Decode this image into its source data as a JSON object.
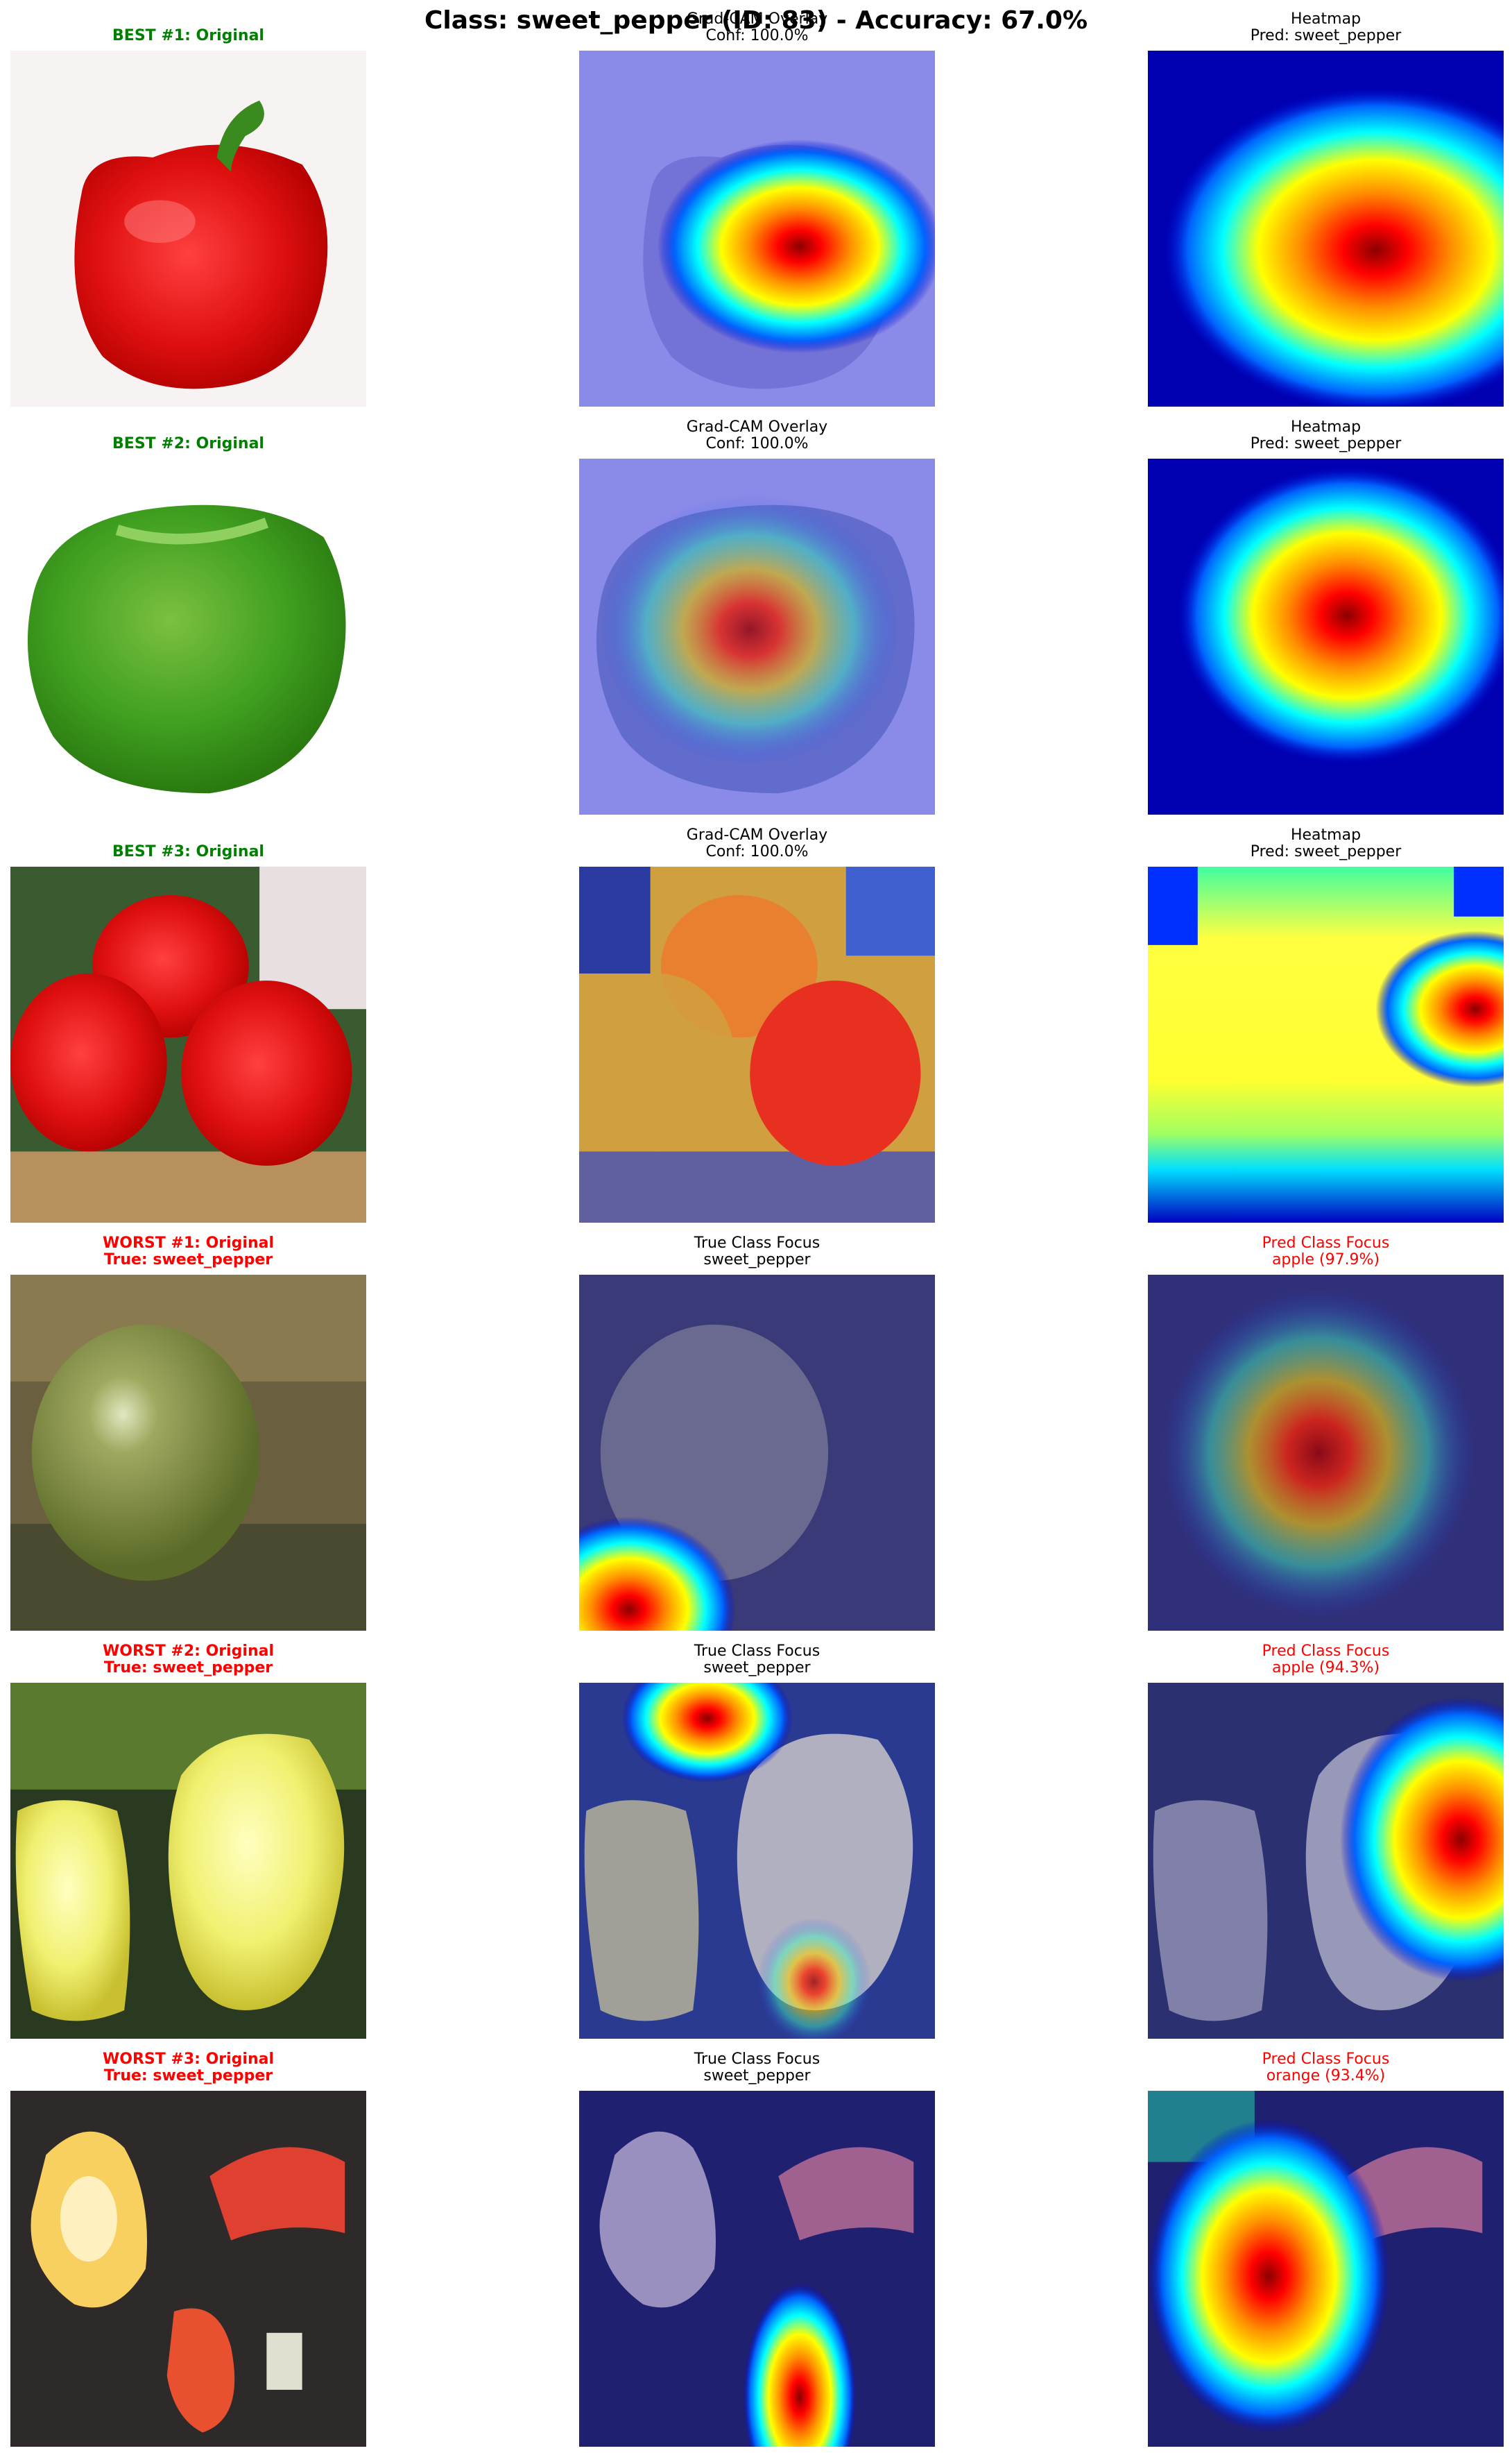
{
  "figure": {
    "title": "Class: sweet_pepper (ID: 83) - Accuracy: 67.0%"
  },
  "rows": [
    {
      "kind": "best",
      "original": {
        "line1": "BEST #1: Original",
        "line2": ""
      },
      "overlay": {
        "line1": "Grad-CAM Overlay",
        "line2": "Conf: 100.0%"
      },
      "heatmap": {
        "line1": "Heatmap",
        "line2": "Pred: sweet_pepper"
      }
    },
    {
      "kind": "best",
      "original": {
        "line1": "BEST #2: Original",
        "line2": ""
      },
      "overlay": {
        "line1": "Grad-CAM Overlay",
        "line2": "Conf: 100.0%"
      },
      "heatmap": {
        "line1": "Heatmap",
        "line2": "Pred: sweet_pepper"
      }
    },
    {
      "kind": "best",
      "original": {
        "line1": "BEST #3: Original",
        "line2": ""
      },
      "overlay": {
        "line1": "Grad-CAM Overlay",
        "line2": "Conf: 100.0%"
      },
      "heatmap": {
        "line1": "Heatmap",
        "line2": "Pred: sweet_pepper"
      }
    },
    {
      "kind": "worst",
      "original": {
        "line1": "WORST #1: Original",
        "line2": "True: sweet_pepper"
      },
      "overlay": {
        "line1": "True Class Focus",
        "line2": "sweet_pepper"
      },
      "heatmap": {
        "line1": "Pred Class Focus",
        "line2": "apple (97.9%)"
      }
    },
    {
      "kind": "worst",
      "original": {
        "line1": "WORST #2: Original",
        "line2": "True: sweet_pepper"
      },
      "overlay": {
        "line1": "True Class Focus",
        "line2": "sweet_pepper"
      },
      "heatmap": {
        "line1": "Pred Class Focus",
        "line2": "apple (94.3%)"
      }
    },
    {
      "kind": "worst",
      "original": {
        "line1": "WORST #3: Original",
        "line2": "True: sweet_pepper"
      },
      "overlay": {
        "line1": "True Class Focus",
        "line2": "sweet_pepper"
      },
      "heatmap": {
        "line1": "Pred Class Focus",
        "line2": "orange (93.4%)"
      }
    }
  ],
  "colors": {
    "best_title": "#008000",
    "worst_title": "#ff0000",
    "pred_title": "#ff0000",
    "normal_title": "#000000"
  }
}
